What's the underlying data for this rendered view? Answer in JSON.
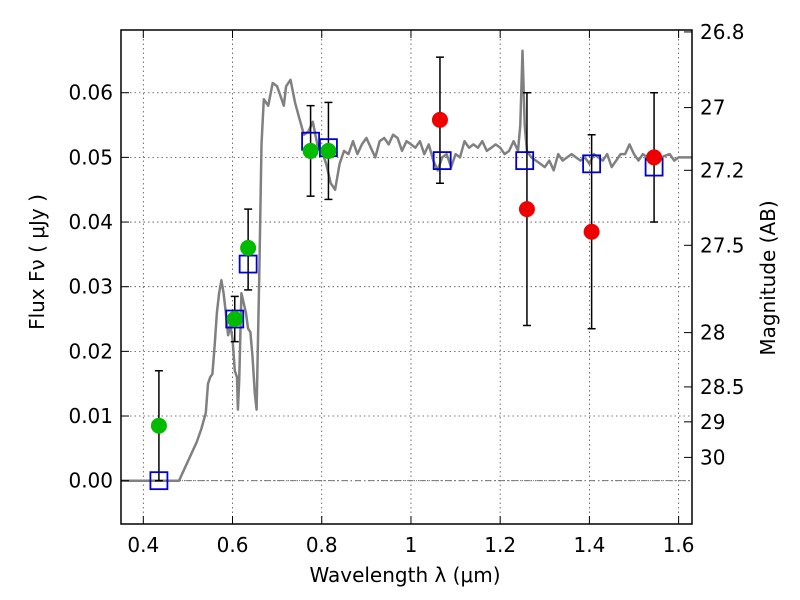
{
  "chart_data": {
    "type": "scatter",
    "title": "",
    "xlabel": "Wavelength  λ (μm)",
    "ylabel": "Flux  Fν  ( μJy )",
    "ylabel2": "Magnitude (AB)",
    "xlim": [
      0.35,
      1.63
    ],
    "ylim": [
      -0.0067,
      0.0697
    ],
    "grid": true,
    "x_ticks": [
      0.4,
      0.6,
      0.8,
      1.0,
      1.2,
      1.4,
      1.6
    ],
    "x_tick_labels": [
      "0.4",
      "0.6",
      "0.8",
      "1",
      "1.2",
      "1.4",
      "1.6"
    ],
    "y_ticks": [
      0.0,
      0.01,
      0.02,
      0.03,
      0.04,
      0.05,
      0.06
    ],
    "y_tick_labels": [
      "0.00",
      "0.01",
      "0.02",
      "0.03",
      "0.04",
      "0.05",
      "0.06"
    ],
    "mag_ticks": [
      {
        "label": "26.8",
        "flux": 0.0694
      },
      {
        "label": "27",
        "flux": 0.0577
      },
      {
        "label": "27.2",
        "flux": 0.048
      },
      {
        "label": "27.5",
        "flux": 0.0364
      },
      {
        "label": "28",
        "flux": 0.0229
      },
      {
        "label": "28.5",
        "flux": 0.0145
      },
      {
        "label": "29",
        "flux": 0.0091
      },
      {
        "label": "30",
        "flux": 0.0036
      }
    ],
    "series": [
      {
        "kind": "line",
        "color": "#808080",
        "points": [
          [
            0.35,
            0.0
          ],
          [
            0.48,
            0.0
          ],
          [
            0.5,
            0.003
          ],
          [
            0.52,
            0.006
          ],
          [
            0.53,
            0.008
          ],
          [
            0.54,
            0.0105
          ],
          [
            0.545,
            0.015
          ],
          [
            0.55,
            0.016
          ],
          [
            0.555,
            0.0165
          ],
          [
            0.56,
            0.021
          ],
          [
            0.565,
            0.026
          ],
          [
            0.57,
            0.029
          ],
          [
            0.575,
            0.031
          ],
          [
            0.58,
            0.029
          ],
          [
            0.585,
            0.026
          ],
          [
            0.59,
            0.0225
          ],
          [
            0.595,
            0.024
          ],
          [
            0.6,
            0.022
          ],
          [
            0.605,
            0.017
          ],
          [
            0.61,
            0.016
          ],
          [
            0.612,
            0.011
          ],
          [
            0.615,
            0.0155
          ],
          [
            0.62,
            0.029
          ],
          [
            0.63,
            0.026
          ],
          [
            0.635,
            0.0235
          ],
          [
            0.64,
            0.023
          ],
          [
            0.645,
            0.019
          ],
          [
            0.65,
            0.0135
          ],
          [
            0.654,
            0.011
          ],
          [
            0.66,
            0.032
          ],
          [
            0.665,
            0.052
          ],
          [
            0.67,
            0.059
          ],
          [
            0.68,
            0.058
          ],
          [
            0.69,
            0.0615
          ],
          [
            0.7,
            0.061
          ],
          [
            0.71,
            0.059
          ],
          [
            0.715,
            0.058
          ],
          [
            0.72,
            0.061
          ],
          [
            0.73,
            0.062
          ],
          [
            0.74,
            0.0585
          ],
          [
            0.75,
            0.056
          ],
          [
            0.76,
            0.0535
          ],
          [
            0.77,
            0.054
          ],
          [
            0.78,
            0.0555
          ],
          [
            0.79,
            0.052
          ],
          [
            0.8,
            0.051
          ],
          [
            0.81,
            0.049
          ],
          [
            0.82,
            0.046
          ],
          [
            0.83,
            0.045
          ],
          [
            0.84,
            0.049
          ],
          [
            0.85,
            0.051
          ],
          [
            0.86,
            0.0505
          ],
          [
            0.87,
            0.0525
          ],
          [
            0.88,
            0.0505
          ],
          [
            0.89,
            0.052
          ],
          [
            0.9,
            0.053
          ],
          [
            0.91,
            0.0515
          ],
          [
            0.92,
            0.05
          ],
          [
            0.93,
            0.0525
          ],
          [
            0.94,
            0.053
          ],
          [
            0.95,
            0.052
          ],
          [
            0.96,
            0.0535
          ],
          [
            0.97,
            0.053
          ],
          [
            0.98,
            0.051
          ],
          [
            0.99,
            0.0525
          ],
          [
            1.0,
            0.052
          ],
          [
            1.01,
            0.0515
          ],
          [
            1.02,
            0.0525
          ],
          [
            1.03,
            0.0505
          ],
          [
            1.04,
            0.052
          ],
          [
            1.05,
            0.0495
          ],
          [
            1.06,
            0.048
          ],
          [
            1.07,
            0.05
          ],
          [
            1.08,
            0.0505
          ],
          [
            1.09,
            0.0485
          ],
          [
            1.1,
            0.0505
          ],
          [
            1.11,
            0.05
          ],
          [
            1.12,
            0.0525
          ],
          [
            1.13,
            0.0515
          ],
          [
            1.14,
            0.052
          ],
          [
            1.15,
            0.0515
          ],
          [
            1.16,
            0.0525
          ],
          [
            1.17,
            0.051
          ],
          [
            1.18,
            0.0515
          ],
          [
            1.19,
            0.052
          ],
          [
            1.2,
            0.0515
          ],
          [
            1.21,
            0.0505
          ],
          [
            1.22,
            0.051
          ],
          [
            1.23,
            0.0525
          ],
          [
            1.24,
            0.051
          ],
          [
            1.245,
            0.055
          ],
          [
            1.25,
            0.0665
          ],
          [
            1.255,
            0.055
          ],
          [
            1.26,
            0.051
          ],
          [
            1.27,
            0.05
          ],
          [
            1.28,
            0.0495
          ],
          [
            1.29,
            0.049
          ],
          [
            1.3,
            0.0485
          ],
          [
            1.31,
            0.0495
          ],
          [
            1.32,
            0.048
          ],
          [
            1.33,
            0.0505
          ],
          [
            1.34,
            0.0495
          ],
          [
            1.35,
            0.05
          ],
          [
            1.36,
            0.0505
          ],
          [
            1.37,
            0.05
          ],
          [
            1.38,
            0.0495
          ],
          [
            1.39,
            0.05
          ],
          [
            1.4,
            0.049
          ],
          [
            1.41,
            0.0505
          ],
          [
            1.42,
            0.05
          ],
          [
            1.43,
            0.0495
          ],
          [
            1.44,
            0.0505
          ],
          [
            1.45,
            0.0485
          ],
          [
            1.46,
            0.0495
          ],
          [
            1.47,
            0.0505
          ],
          [
            1.48,
            0.0505
          ],
          [
            1.49,
            0.052
          ],
          [
            1.5,
            0.0505
          ],
          [
            1.51,
            0.0495
          ],
          [
            1.52,
            0.0505
          ],
          [
            1.53,
            0.05
          ],
          [
            1.54,
            0.0505
          ],
          [
            1.55,
            0.0495
          ],
          [
            1.56,
            0.05
          ],
          [
            1.58,
            0.0505
          ],
          [
            1.59,
            0.0495
          ],
          [
            1.6,
            0.05
          ],
          [
            1.63,
            0.05
          ]
        ]
      },
      {
        "kind": "errorbar",
        "color": "#000000",
        "points": [
          {
            "x": 0.435,
            "ylo": 0.0,
            "yhi": 0.017
          },
          {
            "x": 0.605,
            "ylo": 0.0215,
            "yhi": 0.0285
          },
          {
            "x": 0.635,
            "ylo": 0.0295,
            "yhi": 0.042
          },
          {
            "x": 0.775,
            "ylo": 0.044,
            "yhi": 0.058
          },
          {
            "x": 0.815,
            "ylo": 0.0435,
            "yhi": 0.0585
          },
          {
            "x": 1.065,
            "ylo": 0.046,
            "yhi": 0.0655
          },
          {
            "x": 1.26,
            "ylo": 0.024,
            "yhi": 0.06
          },
          {
            "x": 1.405,
            "ylo": 0.0235,
            "yhi": 0.0535
          },
          {
            "x": 1.545,
            "ylo": 0.04,
            "yhi": 0.06
          }
        ]
      },
      {
        "kind": "square",
        "color": "#0000cc",
        "points": [
          {
            "x": 0.435,
            "y": 0.0
          },
          {
            "x": 0.605,
            "y": 0.025
          },
          {
            "x": 0.635,
            "y": 0.0335
          },
          {
            "x": 0.775,
            "y": 0.0525
          },
          {
            "x": 0.815,
            "y": 0.0515
          },
          {
            "x": 1.07,
            "y": 0.0495
          },
          {
            "x": 1.255,
            "y": 0.0495
          },
          {
            "x": 1.405,
            "y": 0.049
          },
          {
            "x": 1.545,
            "y": 0.0485
          }
        ]
      },
      {
        "kind": "circle",
        "color": "#00bb00",
        "points": [
          {
            "x": 0.435,
            "y": 0.0085
          },
          {
            "x": 0.605,
            "y": 0.025
          },
          {
            "x": 0.635,
            "y": 0.036
          },
          {
            "x": 0.775,
            "y": 0.051
          },
          {
            "x": 0.815,
            "y": 0.051
          }
        ]
      },
      {
        "kind": "circle",
        "color": "#ee0000",
        "points": [
          {
            "x": 1.065,
            "y": 0.0558
          },
          {
            "x": 1.26,
            "y": 0.042
          },
          {
            "x": 1.405,
            "y": 0.0385
          },
          {
            "x": 1.545,
            "y": 0.05
          }
        ]
      }
    ]
  }
}
